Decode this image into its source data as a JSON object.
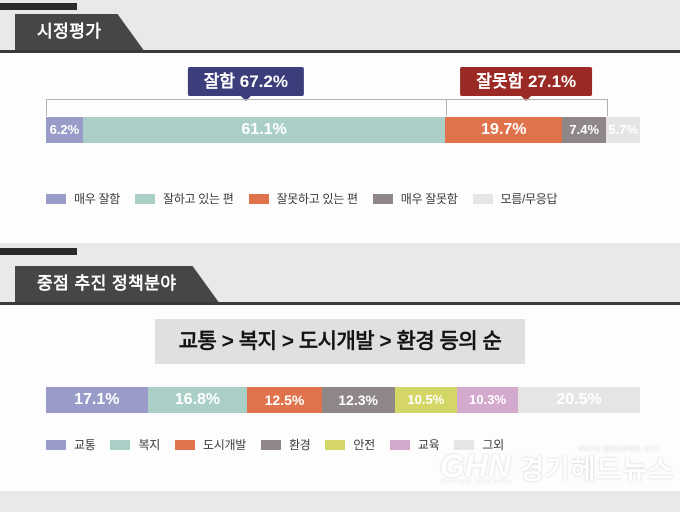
{
  "colors": {
    "background": "#e9e9e9",
    "panel": "#fdfdfd",
    "header_bar": "#464646",
    "header_stub": "#2b2b2b",
    "bracket": "#b2b0ae",
    "callout_good": "#3c3e7c",
    "callout_bad": "#9c2a24",
    "title_box_bg": "#e0e0e0"
  },
  "section1": {
    "header": "시정평가",
    "callouts": [
      {
        "label": "잘함 67.2%",
        "color": "#3c3e7c"
      },
      {
        "label": "잘못함 27.1%",
        "color": "#9c2a24"
      }
    ]
  },
  "section2": {
    "header": "중점 추진 정책분야",
    "title_box": "교통 > 복지 > 도시개발 > 환경 등의 순"
  },
  "watermark": {
    "url": "www.ghnews.net",
    "logo": "GHN",
    "logo_sub": "Gyeonggi Head News",
    "brand": "경기헤드뉴스"
  },
  "chart_data": [
    {
      "type": "bar",
      "stacked": true,
      "orientation": "horizontal",
      "title": "시정평가",
      "categories": [
        "매우 잘함",
        "잘하고 있는 편",
        "잘못하고 있는 편",
        "매우 잘못함",
        "모름/무응답"
      ],
      "values": [
        6.2,
        61.1,
        19.7,
        7.4,
        5.7
      ],
      "colors": [
        "#999bc8",
        "#aacfc7",
        "#e0734c",
        "#8f8687",
        "#e7e5e3"
      ],
      "annotations": [
        {
          "label": "잘함 67.2%",
          "value": 67.2,
          "covers": [
            "매우 잘함",
            "잘하고 있는 편"
          ]
        },
        {
          "label": "잘못함 27.1%",
          "value": 27.1,
          "covers": [
            "잘못하고 있는 편",
            "매우 잘못함"
          ]
        }
      ],
      "legend_position": "bottom",
      "value_suffix": "%"
    },
    {
      "type": "bar",
      "stacked": true,
      "orientation": "horizontal",
      "title": "중점 추진 정책분야",
      "subtitle": "교통 > 복지 > 도시개발 > 환경 등의 순",
      "categories": [
        "교통",
        "복지",
        "도시개발",
        "환경",
        "안전",
        "교육",
        "그외"
      ],
      "values": [
        17.1,
        16.8,
        12.5,
        12.3,
        10.5,
        10.3,
        20.5
      ],
      "colors": [
        "#999bc8",
        "#aacfc7",
        "#e0734c",
        "#8f8687",
        "#d4d766",
        "#d3aacd",
        "#e7e5e3"
      ],
      "legend_position": "bottom",
      "value_suffix": "%"
    }
  ]
}
